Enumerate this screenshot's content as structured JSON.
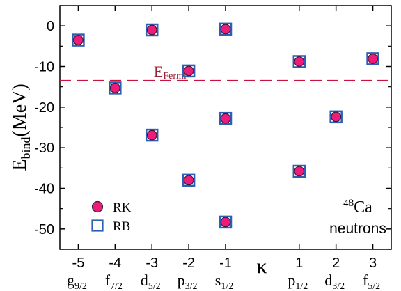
{
  "chart_data": {
    "type": "scatter",
    "ylabel": {
      "main": "E",
      "sub": "bind",
      "unit": "(MeV)"
    },
    "xaxis_symbol": "κ",
    "xlim": [
      -5.5,
      3.5
    ],
    "ylim": [
      -55,
      5
    ],
    "yticks": [
      0,
      -10,
      -20,
      -30,
      -40,
      -50
    ],
    "ytick_labels": [
      "0",
      "-10",
      "-20",
      "-30",
      "-40",
      "-50"
    ],
    "xticks": [
      {
        "kappa": -5,
        "label": "-5",
        "orbital": "g",
        "sub": "9/2"
      },
      {
        "kappa": -4,
        "label": "-4",
        "orbital": "f",
        "sub": "7/2"
      },
      {
        "kappa": -3,
        "label": "-3",
        "orbital": "d",
        "sub": "5/2"
      },
      {
        "kappa": -2,
        "label": "-2",
        "orbital": "p",
        "sub": "3/2"
      },
      {
        "kappa": -1,
        "label": "-1",
        "orbital": "s",
        "sub": "1/2"
      },
      {
        "kappa": 1,
        "label": "1",
        "orbital": "p",
        "sub": "1/2"
      },
      {
        "kappa": 2,
        "label": "2",
        "orbital": "d",
        "sub": "3/2"
      },
      {
        "kappa": 3,
        "label": "3",
        "orbital": "f",
        "sub": "5/2"
      }
    ],
    "fermi": {
      "value": -13.5,
      "label_main": "E",
      "label_sub": "Fermi",
      "color": "#c8143c"
    },
    "series": [
      {
        "name": "RK",
        "marker": "circle",
        "color": "#ee1c78",
        "points": [
          {
            "x": -5,
            "y": -3.5
          },
          {
            "x": -4,
            "y": -15.3
          },
          {
            "x": -3,
            "y": -1.0
          },
          {
            "x": -3,
            "y": -26.9
          },
          {
            "x": -2,
            "y": -11.1
          },
          {
            "x": -2,
            "y": -38.0
          },
          {
            "x": -1,
            "y": -0.8
          },
          {
            "x": -1,
            "y": -22.8
          },
          {
            "x": -1,
            "y": -48.3
          },
          {
            "x": 1,
            "y": -8.8
          },
          {
            "x": 1,
            "y": -35.8
          },
          {
            "x": 2,
            "y": -22.4
          },
          {
            "x": 3,
            "y": -8.1
          }
        ]
      },
      {
        "name": "RB",
        "marker": "square",
        "color": "#2d5fb4",
        "points": [
          {
            "x": -5,
            "y": -3.5
          },
          {
            "x": -4,
            "y": -15.3
          },
          {
            "x": -3,
            "y": -1.0
          },
          {
            "x": -3,
            "y": -26.9
          },
          {
            "x": -2,
            "y": -11.1
          },
          {
            "x": -2,
            "y": -38.0
          },
          {
            "x": -1,
            "y": -0.8
          },
          {
            "x": -1,
            "y": -22.8
          },
          {
            "x": -1,
            "y": -48.3
          },
          {
            "x": 1,
            "y": -8.8
          },
          {
            "x": 1,
            "y": -35.8
          },
          {
            "x": 2,
            "y": -22.4
          },
          {
            "x": 3,
            "y": -8.1
          }
        ]
      }
    ],
    "legend": {
      "position": "bottom-left",
      "entries": [
        "RK",
        "RB"
      ]
    },
    "annotation": {
      "mass": "48",
      "element": "Ca",
      "line2": "neutrons",
      "position": "bottom-right"
    },
    "grid": false
  }
}
